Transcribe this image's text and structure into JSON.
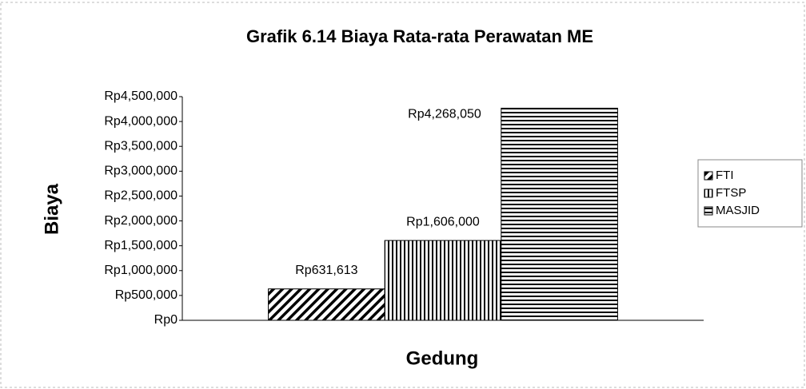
{
  "chart_data": {
    "type": "bar",
    "title": "Grafik 6.14 Biaya Rata-rata Perawatan ME",
    "y_label": "Biaya",
    "x_label": "Gedung",
    "categories": [
      null
    ],
    "series": [
      {
        "name": "FTI",
        "color": "#000000",
        "pattern": "diagonal",
        "values": [
          631613
        ],
        "value_labels": [
          "Rp631,613"
        ]
      },
      {
        "name": "FTSP",
        "color": "#000000",
        "pattern": "vertical",
        "values": [
          1606000
        ],
        "value_labels": [
          "Rp1,606,000"
        ]
      },
      {
        "name": "MASJID",
        "color": "#000000",
        "pattern": "horizontal",
        "values": [
          4268050
        ],
        "value_labels": [
          "Rp4,268,050"
        ]
      }
    ],
    "ylim": [
      0,
      4500000
    ],
    "yticks": [
      {
        "value": 0,
        "label": "Rp0"
      },
      {
        "value": 500000,
        "label": "Rp500,000"
      },
      {
        "value": 1000000,
        "label": "Rp1,000,000"
      },
      {
        "value": 1500000,
        "label": "Rp1,500,000"
      },
      {
        "value": 2000000,
        "label": "Rp2,000,000"
      },
      {
        "value": 2500000,
        "label": "Rp2,500,000"
      },
      {
        "value": 3000000,
        "label": "Rp3,000,000"
      },
      {
        "value": 3500000,
        "label": "Rp3,500,000"
      },
      {
        "value": 4000000,
        "label": "Rp4,000,000"
      },
      {
        "value": 4500000,
        "label": "Rp4,500,000"
      }
    ],
    "grid": false,
    "legend": "right"
  }
}
